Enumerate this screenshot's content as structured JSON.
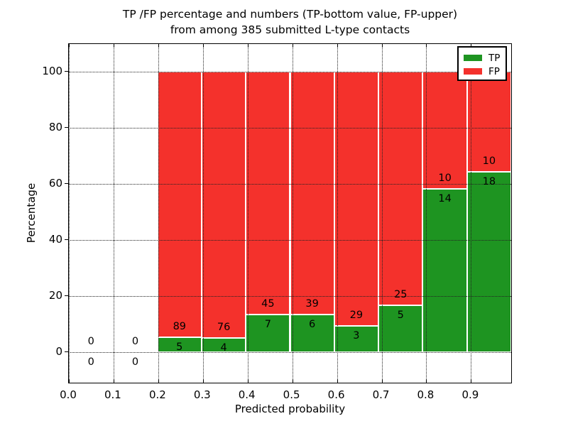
{
  "chart_data": {
    "type": "bar",
    "stacked": true,
    "title": "TP /FP percentage and numbers (TP-bottom value, FP-upper) from among 385 submitted L-type contacts",
    "title_line1": "TP /FP percentage and numbers (TP-bottom value, FP-upper)",
    "title_line2": "from among 385 submitted L-type contacts",
    "xlabel": "Predicted probability",
    "ylabel": "Percentage",
    "xlim": [
      0,
      0.99
    ],
    "ylim": [
      -11,
      110
    ],
    "grid": true,
    "grid_style": "dotted",
    "x_ticks": [
      {
        "value": 0.0,
        "label": "0.0"
      },
      {
        "value": 0.1,
        "label": "0.1"
      },
      {
        "value": 0.2,
        "label": "0.2"
      },
      {
        "value": 0.3,
        "label": "0.3"
      },
      {
        "value": 0.4,
        "label": "0.4"
      },
      {
        "value": 0.5,
        "label": "0.5"
      },
      {
        "value": 0.6,
        "label": "0.6"
      },
      {
        "value": 0.7,
        "label": "0.7"
      },
      {
        "value": 0.8,
        "label": "0.8"
      },
      {
        "value": 0.9,
        "label": "0.9"
      }
    ],
    "y_ticks": [
      {
        "value": 0,
        "label": "0"
      },
      {
        "value": 20,
        "label": "20"
      },
      {
        "value": 40,
        "label": "40"
      },
      {
        "value": 60,
        "label": "60"
      },
      {
        "value": 80,
        "label": "80"
      },
      {
        "value": 100,
        "label": "100"
      }
    ],
    "legend": {
      "position": "upper right",
      "items": [
        {
          "label": "TP",
          "color": "#1e9421"
        },
        {
          "label": "FP",
          "color": "#f4312c"
        }
      ]
    },
    "bins": [
      {
        "x_from": 0.0,
        "x_to": 0.099,
        "tp_count": 0,
        "fp_count": 0,
        "tp_pct": 0,
        "fp_pct": 0
      },
      {
        "x_from": 0.099,
        "x_to": 0.198,
        "tp_count": 0,
        "fp_count": 0,
        "tp_pct": 0,
        "fp_pct": 0
      },
      {
        "x_from": 0.198,
        "x_to": 0.297,
        "tp_count": 5,
        "fp_count": 89,
        "tp_pct": 5.32,
        "fp_pct": 94.68
      },
      {
        "x_from": 0.297,
        "x_to": 0.396,
        "tp_count": 4,
        "fp_count": 76,
        "tp_pct": 5.0,
        "fp_pct": 95.0
      },
      {
        "x_from": 0.396,
        "x_to": 0.495,
        "tp_count": 7,
        "fp_count": 45,
        "tp_pct": 13.46,
        "fp_pct": 86.54
      },
      {
        "x_from": 0.495,
        "x_to": 0.594,
        "tp_count": 6,
        "fp_count": 39,
        "tp_pct": 13.33,
        "fp_pct": 86.67
      },
      {
        "x_from": 0.594,
        "x_to": 0.693,
        "tp_count": 3,
        "fp_count": 29,
        "tp_pct": 9.38,
        "fp_pct": 90.62
      },
      {
        "x_from": 0.693,
        "x_to": 0.792,
        "tp_count": 5,
        "fp_count": 25,
        "tp_pct": 16.67,
        "fp_pct": 83.33
      },
      {
        "x_from": 0.792,
        "x_to": 0.891,
        "tp_count": 14,
        "fp_count": 10,
        "tp_pct": 58.33,
        "fp_pct": 41.67
      },
      {
        "x_from": 0.891,
        "x_to": 0.99,
        "tp_count": 18,
        "fp_count": 10,
        "tp_pct": 64.29,
        "fp_pct": 35.71
      }
    ]
  }
}
